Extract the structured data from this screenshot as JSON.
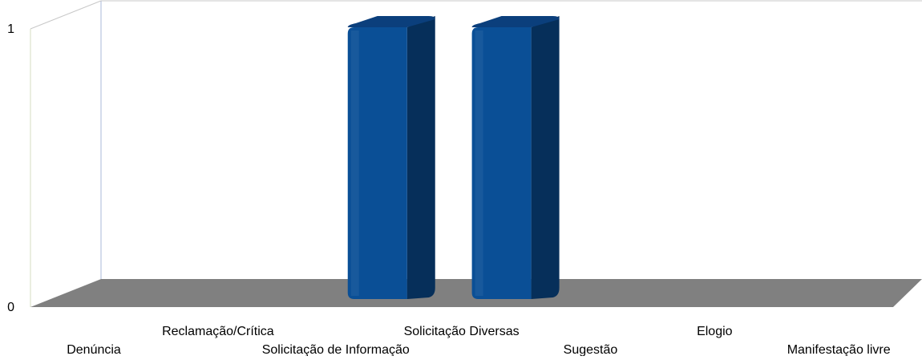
{
  "chart_data": {
    "type": "bar",
    "style": "3d-column",
    "categories": [
      "Denúncia",
      "Reclamação/Crítica",
      "Solicitação de Informação",
      "Solicitação Diversas",
      "Sugestão",
      "Elogio",
      "Manifestação livre"
    ],
    "values": [
      0,
      0,
      1,
      1,
      0,
      0,
      0
    ],
    "ylim": [
      0,
      1
    ],
    "y_ticks": [
      "0",
      "1"
    ],
    "title": "",
    "xlabel": "",
    "ylabel": "",
    "grid": false,
    "legend": "none",
    "colors": {
      "bar_front": "#0a4f96",
      "bar_side": "#062f5a",
      "bar_top": "#0b3f7c",
      "floor": "#808080",
      "wall_line": "#c8c8c8",
      "side_wall_line": "#d6dcc0"
    }
  }
}
